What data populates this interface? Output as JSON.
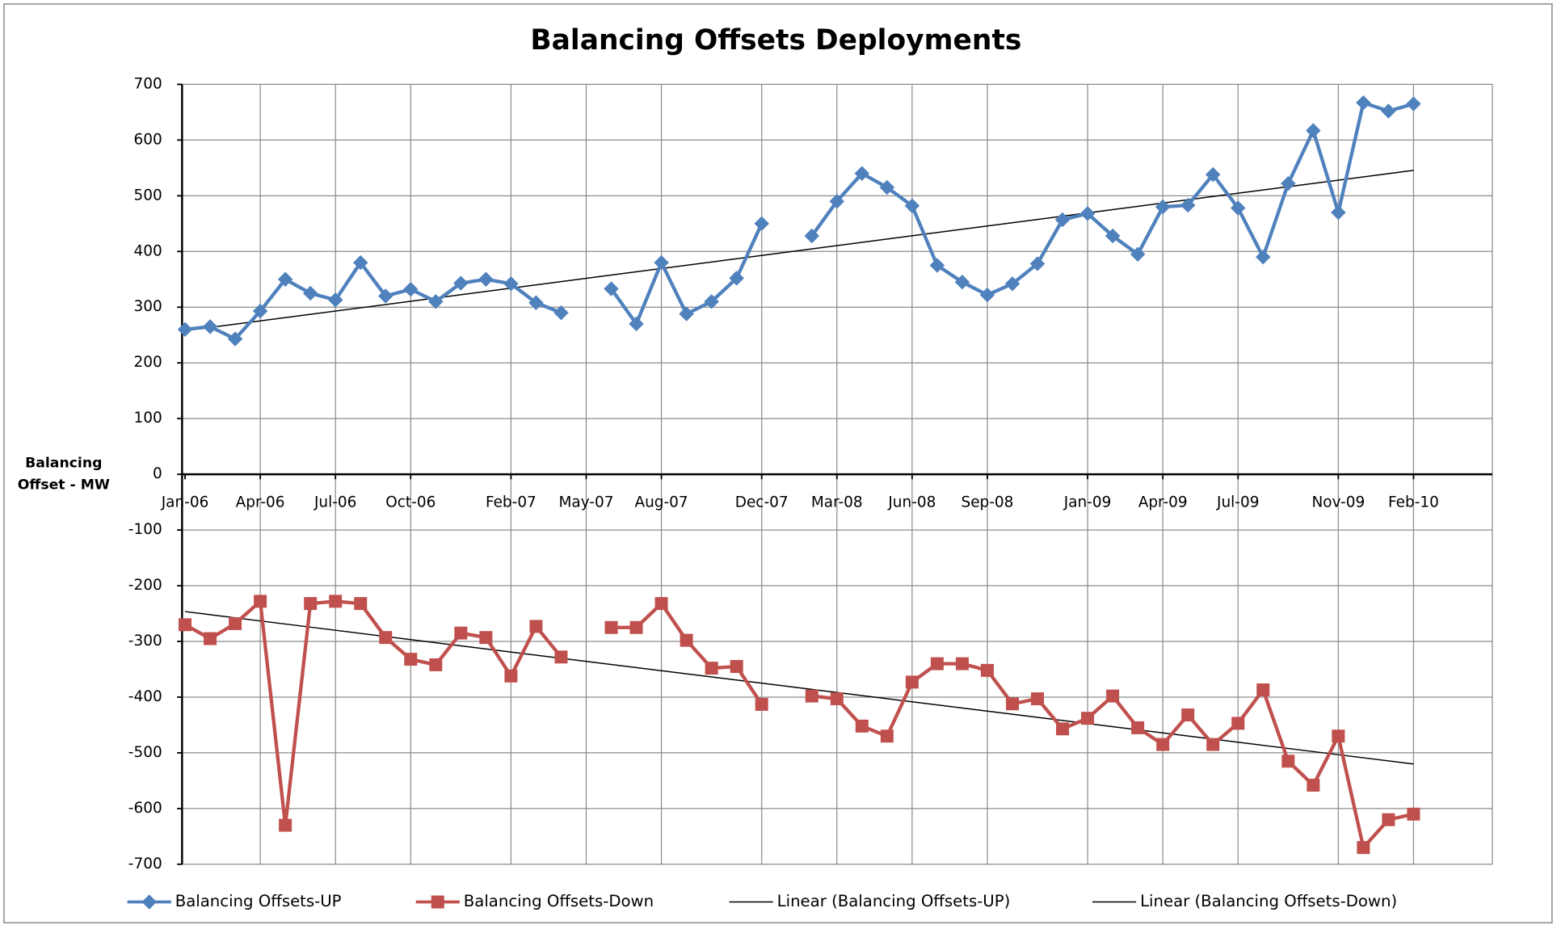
{
  "chart_data": {
    "type": "line",
    "title": "Balancing Offsets Deployments",
    "y_label": "Balancing Offset - MW",
    "categories": [
      "Jan-06",
      null,
      null,
      "Apr-06",
      null,
      null,
      "Jul-06",
      null,
      null,
      "Oct-06",
      null,
      null,
      null,
      "Feb-07",
      null,
      null,
      "May-07",
      null,
      null,
      "Aug-07",
      null,
      null,
      null,
      "Dec-07",
      null,
      null,
      "Mar-08",
      null,
      null,
      "Jun-08",
      null,
      null,
      "Sep-08",
      null,
      null,
      null,
      "Jan-09",
      null,
      null,
      "Apr-09",
      null,
      null,
      "Jul-09",
      null,
      null,
      null,
      "Nov-09",
      null,
      null,
      "Feb-10"
    ],
    "series": [
      {
        "name": "Balancing Offsets-UP",
        "color": "#4f81bd",
        "marker": "diamond",
        "values": [
          260,
          265,
          243,
          293,
          350,
          325,
          313,
          380,
          320,
          332,
          310,
          343,
          350,
          342,
          308,
          290,
          null,
          333,
          270,
          380,
          288,
          310,
          352,
          450,
          null,
          428,
          490,
          540,
          515,
          482,
          375,
          345,
          322,
          342,
          378,
          457,
          468,
          428,
          395,
          480,
          483,
          538,
          478,
          390,
          522,
          617,
          470,
          667,
          652,
          665
        ]
      },
      {
        "name": "Balancing Offsets-Down",
        "color": "#c0504d",
        "marker": "square",
        "values": [
          -270,
          -295,
          -268,
          -228,
          -630,
          -232,
          -228,
          -232,
          -293,
          -332,
          -342,
          -285,
          -293,
          -362,
          -273,
          -328,
          null,
          -275,
          -275,
          -232,
          -298,
          -348,
          -345,
          -413,
          null,
          -398,
          -403,
          -452,
          -470,
          -373,
          -340,
          -340,
          -352,
          -412,
          -403,
          -457,
          -438,
          -398,
          -455,
          -485,
          -432,
          -485,
          -447,
          -387,
          -515,
          -558,
          -470,
          -670,
          -620,
          -610
        ]
      }
    ],
    "trendlines": [
      {
        "name": "Linear (Balancing Offsets-UP)",
        "series": 0,
        "color": "#000000"
      },
      {
        "name": "Linear (Balancing Offsets-Down)",
        "series": 1,
        "color": "#000000"
      }
    ],
    "ylim": [
      -700,
      700
    ],
    "yticks": [
      -700,
      -600,
      -500,
      -400,
      -300,
      -200,
      -100,
      0,
      100,
      200,
      300,
      400,
      500,
      600,
      700
    ],
    "grid": true,
    "legend": "bottom"
  }
}
